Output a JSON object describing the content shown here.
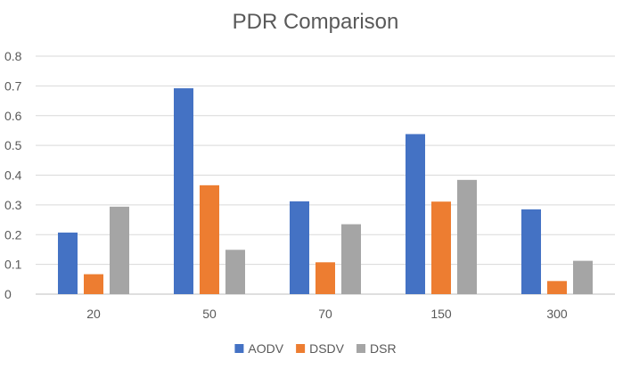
{
  "chart_data": {
    "type": "bar",
    "title": "PDR Comparison",
    "categories": [
      "20",
      "50",
      "70",
      "150",
      "300"
    ],
    "series": [
      {
        "name": "AODV",
        "color": "#4472C4",
        "values": [
          0.207,
          0.692,
          0.312,
          0.538,
          0.285
        ]
      },
      {
        "name": "DSDV",
        "color": "#ED7D31",
        "values": [
          0.067,
          0.366,
          0.107,
          0.311,
          0.044
        ]
      },
      {
        "name": "DSR",
        "color": "#A5A5A5",
        "values": [
          0.294,
          0.149,
          0.235,
          0.384,
          0.112
        ]
      }
    ],
    "ylim": [
      0,
      0.8
    ],
    "yticks": [
      "0",
      "0.1",
      "0.2",
      "0.3",
      "0.4",
      "0.5",
      "0.6",
      "0.7",
      "0.8"
    ],
    "grid": true,
    "legend": "bottom",
    "gridline_color": "#D9D9D9",
    "axis_line_color": "#BFBFBF"
  }
}
